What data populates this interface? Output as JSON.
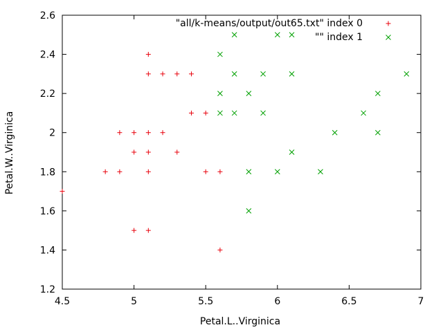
{
  "chart_data": {
    "type": "scatter",
    "title": "",
    "xlabel": "Petal.L..Virginica",
    "ylabel": "Petal.W..Virginica",
    "xlim": [
      4.5,
      7
    ],
    "ylim": [
      1.2,
      2.6
    ],
    "x_ticks": [
      "4.5",
      "5",
      "5.5",
      "6",
      "6.5",
      "7"
    ],
    "y_ticks": [
      "1.2",
      "1.4",
      "1.6",
      "1.8",
      "2",
      "2.2",
      "2.4",
      "2.6"
    ],
    "grid": false,
    "legend_position": "top-right",
    "series": [
      {
        "name": "\"all/k-means/output/out65.txt\" index 0",
        "marker": "plus",
        "color": "#e8000b",
        "points": [
          [
            4.5,
            1.7
          ],
          [
            4.8,
            1.8
          ],
          [
            4.9,
            1.8
          ],
          [
            5.1,
            1.8
          ],
          [
            5.5,
            1.8
          ],
          [
            5.6,
            1.8
          ],
          [
            4.9,
            2.0
          ],
          [
            5.0,
            2.0
          ],
          [
            5.1,
            2.0
          ],
          [
            5.2,
            2.0
          ],
          [
            5.0,
            1.9
          ],
          [
            5.1,
            1.9
          ],
          [
            5.3,
            1.9
          ],
          [
            5.0,
            1.5
          ],
          [
            5.1,
            1.5
          ],
          [
            5.6,
            1.4
          ],
          [
            5.4,
            2.1
          ],
          [
            5.5,
            2.1
          ],
          [
            5.1,
            2.3
          ],
          [
            5.2,
            2.3
          ],
          [
            5.3,
            2.3
          ],
          [
            5.4,
            2.3
          ],
          [
            5.1,
            2.4
          ]
        ]
      },
      {
        "name": "\"\" index 1",
        "marker": "cross",
        "color": "#00a000",
        "points": [
          [
            5.7,
            2.5
          ],
          [
            6.0,
            2.5
          ],
          [
            6.1,
            2.5
          ],
          [
            5.6,
            2.4
          ],
          [
            5.7,
            2.3
          ],
          [
            5.9,
            2.3
          ],
          [
            6.1,
            2.3
          ],
          [
            6.9,
            2.3
          ],
          [
            5.6,
            2.2
          ],
          [
            5.8,
            2.2
          ],
          [
            6.7,
            2.2
          ],
          [
            5.6,
            2.1
          ],
          [
            5.7,
            2.1
          ],
          [
            5.9,
            2.1
          ],
          [
            6.6,
            2.1
          ],
          [
            6.4,
            2.0
          ],
          [
            6.7,
            2.0
          ],
          [
            6.1,
            1.9
          ],
          [
            5.8,
            1.8
          ],
          [
            6.0,
            1.8
          ],
          [
            6.3,
            1.8
          ],
          [
            5.8,
            1.6
          ]
        ]
      }
    ]
  }
}
